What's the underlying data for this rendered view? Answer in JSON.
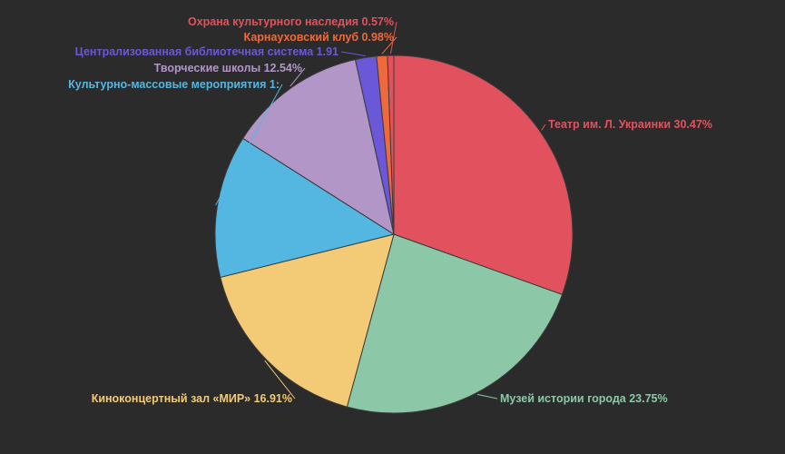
{
  "chart_data": {
    "type": "pie",
    "title": "",
    "slices": [
      {
        "label": "Театр им. Л. Украинки",
        "value": 30.47,
        "display": "Театр им. Л. Украинки 30.47%",
        "color": "#e2525e"
      },
      {
        "label": "Музей истории города",
        "value": 23.75,
        "display": "Музей истории города 23.75%",
        "color": "#8cc7a8"
      },
      {
        "label": "Киноконцертный зал «МИР»",
        "value": 16.91,
        "display": "Киноконцертный зал «МИР» 16.91%",
        "color": "#f3cb76"
      },
      {
        "label": "Культурно-массовые мероприятия",
        "value": 12.87,
        "display": "Культурно-массовые мероприятия 1:",
        "color": "#54b7e2"
      },
      {
        "label": "Творческие школы",
        "value": 12.54,
        "display": "Творческие школы 12.54%",
        "color": "#b196c7"
      },
      {
        "label": "Централизованная библиотечная система",
        "value": 1.91,
        "display": "Централизованная библиотечная система 1.91",
        "color": "#6b58d8"
      },
      {
        "label": "Карнауховский клуб",
        "value": 0.98,
        "display": "Карнауховский клуб 0.98%",
        "color": "#ee6a3c"
      },
      {
        "label": "Охрана культурного наследия",
        "value": 0.57,
        "display": "Охрана культурного наследия 0.57%",
        "color": "#e2525e"
      }
    ],
    "legend": "none",
    "label_placement": "outside with leader lines"
  }
}
